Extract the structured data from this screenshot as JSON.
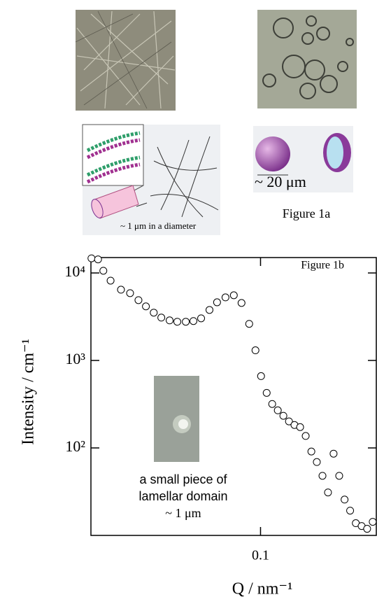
{
  "figure_1a": {
    "fibril_label": "~ 1 μm in a diameter",
    "vesicle_label": "~ 20 μm",
    "caption": "Figure 1a"
  },
  "chart_data": {
    "type": "scatter",
    "marker": "open-circle",
    "color": "#000000",
    "annotation": "Figure 1b",
    "inset_label": [
      "a small piece of",
      "lamellar domain",
      "~ 1 μm"
    ],
    "x_label": "Q / nm⁻¹",
    "y_label": "Intensity / cm⁻¹",
    "xscale": "log",
    "yscale": "log",
    "xlim": [
      0.02,
      0.3
    ],
    "ylim": [
      10,
      15000
    ],
    "xticks": [
      0.1
    ],
    "yticks": [
      {
        "value": 100,
        "label": "10²"
      },
      {
        "value": 1000,
        "label": "10³"
      },
      {
        "value": 10000,
        "label": "10⁴"
      }
    ],
    "x": [
      0.0201,
      0.0214,
      0.0225,
      0.0241,
      0.0266,
      0.029,
      0.0314,
      0.0337,
      0.0363,
      0.039,
      0.0422,
      0.0454,
      0.0492,
      0.0529,
      0.0569,
      0.0616,
      0.0662,
      0.0717,
      0.0776,
      0.0835,
      0.0898,
      0.0953,
      0.1005,
      0.106,
      0.1117,
      0.1178,
      0.1242,
      0.131,
      0.138,
      0.1456,
      0.1535,
      0.162,
      0.1706,
      0.18,
      0.1897,
      0.2,
      0.211,
      0.222,
      0.234,
      0.247,
      0.261,
      0.275,
      0.29
    ],
    "values": [
      14700,
      14300,
      10600,
      8170,
      6440,
      5880,
      4890,
      4150,
      3520,
      3090,
      2870,
      2770,
      2770,
      2820,
      3030,
      3780,
      4620,
      5260,
      5560,
      4540,
      2620,
      1306,
      662,
      426,
      318,
      269,
      233,
      201,
      183,
      173,
      137,
      91,
      69,
      48,
      31,
      86,
      48,
      25.7,
      19.2,
      13.8,
      12.8,
      11.9,
      14.3
    ]
  }
}
